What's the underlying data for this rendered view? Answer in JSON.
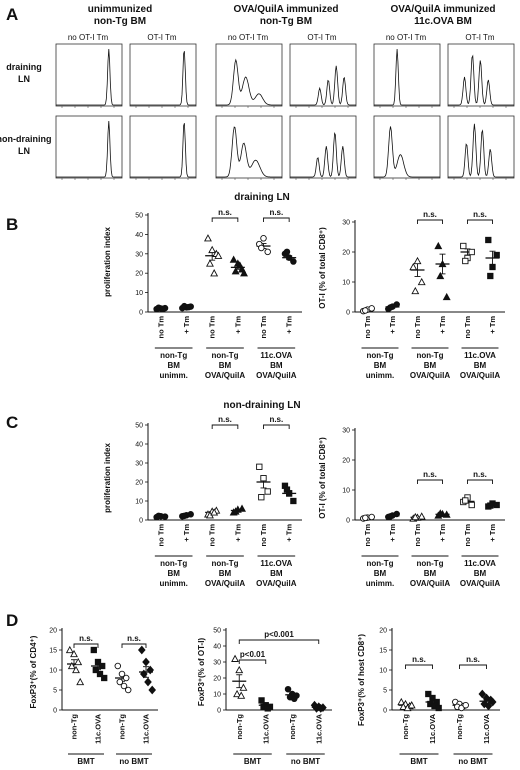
{
  "panel_a": {
    "letter": "A",
    "groups": [
      {
        "title_lines": [
          "unimmunized",
          "non-Tg BM"
        ],
        "col_labels": [
          "no OT-I Tm",
          "OT-I Tm"
        ]
      },
      {
        "title_lines": [
          "OVA/QuilA immunized",
          "non-Tg BM"
        ],
        "col_labels": [
          "no OT-I Tm",
          "OT-I Tm"
        ]
      },
      {
        "title_lines": [
          "OVA/QuilA immunized",
          "11c.OVA BM"
        ],
        "col_labels": [
          "no OT-I Tm",
          "OT-I Tm"
        ]
      }
    ],
    "row_labels": [
      [
        "draining",
        "LN"
      ],
      [
        "non-draining",
        "LN"
      ]
    ]
  },
  "panel_b": {
    "letter": "B",
    "heading": "draining LN",
    "left_ylabel": "proliferation index",
    "right_ylabel": "OT-I (% of total CD8⁺)",
    "x_cats": [
      "no Tm",
      "+ Tm",
      "no Tm",
      "+ Tm",
      "no Tm",
      "+ Tm"
    ],
    "group_labels": [
      [
        "non-Tg",
        "BM",
        "unimm."
      ],
      [
        "non-Tg",
        "BM",
        "OVA/QuilA"
      ],
      [
        "11c.OVA",
        "BM",
        "OVA/QuilA"
      ]
    ],
    "sig": [
      "n.s.",
      "n.s."
    ]
  },
  "panel_c": {
    "letter": "C",
    "heading": "non-draining LN",
    "left_ylabel": "proliferation index",
    "right_ylabel": "OT-I (% of total CD8⁺)",
    "x_cats": [
      "no Tm",
      "+ Tm",
      "no Tm",
      "+ Tm",
      "no Tm",
      "+ Tm"
    ],
    "group_labels": [
      [
        "non-Tg",
        "BM",
        "unimm."
      ],
      [
        "non-Tg",
        "BM",
        "OVA/QuilA"
      ],
      [
        "11c.OVA",
        "BM",
        "OVA/QuilA"
      ]
    ],
    "sig": [
      "n.s.",
      "n.s."
    ]
  },
  "panel_d": {
    "letter": "D",
    "x_cats": [
      "non-Tg",
      "11c.OVA",
      "non-Tg",
      "11c.OVA"
    ],
    "group_labels": [
      "BMT",
      "no BMT"
    ],
    "left_ylabel": "FoxP3⁺(% of CD4⁺)",
    "mid_ylabel": "FoxP3⁺(% of OT-I)",
    "right_ylabel": "FoxP3⁺(% of host CD8⁺)",
    "sig_left": [
      "n.s.",
      "n.s."
    ],
    "sig_mid": [
      "p<0.01",
      "p<0.001"
    ],
    "sig_right": [
      "n.s.",
      "n.s."
    ]
  },
  "chart_data": [
    {
      "id": "B-left",
      "type": "scatter",
      "ylim": [
        0,
        50
      ],
      "yticks": [
        0,
        10,
        20,
        30,
        40,
        50
      ],
      "markers": [
        "circle-filled",
        "circle-filled",
        "triangle-open",
        "triangle-filled",
        "circle-open",
        "circle-filled"
      ],
      "groups": [
        [
          1.5,
          1.8,
          2.0,
          2.2,
          1.6
        ],
        [
          2.0,
          2.4,
          2.8,
          3.0,
          2.5
        ],
        [
          38,
          32,
          30,
          25,
          20,
          29
        ],
        [
          27,
          25,
          22,
          21,
          24,
          20
        ],
        [
          35,
          38,
          31,
          33
        ],
        [
          30,
          28,
          26,
          31
        ]
      ],
      "means": [
        1.8,
        2.5,
        29,
        23,
        34,
        28
      ]
    },
    {
      "id": "B-right",
      "type": "scatter",
      "ylim": [
        0,
        30
      ],
      "yticks": [
        0,
        10,
        20,
        30
      ],
      "markers": [
        "circle-open",
        "circle-filled",
        "triangle-open",
        "triangle-filled",
        "square-open",
        "square-filled"
      ],
      "groups": [
        [
          0.3,
          0.8,
          1.2,
          0.5
        ],
        [
          1.0,
          1.8,
          2.5,
          1.5
        ],
        [
          15,
          17,
          10,
          7
        ],
        [
          22,
          16,
          5,
          12
        ],
        [
          22,
          18,
          20,
          17
        ],
        [
          24,
          15,
          19,
          12
        ]
      ],
      "means": [
        0.7,
        1.7,
        14,
        16,
        20,
        18
      ]
    },
    {
      "id": "C-left",
      "type": "scatter",
      "ylim": [
        0,
        50
      ],
      "yticks": [
        0,
        10,
        20,
        30,
        40,
        50
      ],
      "markers": [
        "circle-filled",
        "circle-filled",
        "triangle-open",
        "triangle-filled",
        "square-open",
        "square-filled"
      ],
      "groups": [
        [
          1.5,
          2.0,
          1.8,
          2.2
        ],
        [
          2.0,
          2.5,
          3.0,
          2.2
        ],
        [
          3.0,
          4.5,
          5.0,
          2.5,
          4.0
        ],
        [
          4.0,
          5.5,
          6.0,
          4.5
        ],
        [
          28,
          22,
          15,
          12
        ],
        [
          18,
          14,
          10,
          16
        ]
      ],
      "means": [
        1.9,
        2.4,
        4,
        5,
        20,
        14
      ]
    },
    {
      "id": "C-right",
      "type": "scatter",
      "ylim": [
        0,
        30
      ],
      "yticks": [
        0,
        10,
        20,
        30
      ],
      "markers": [
        "circle-open",
        "circle-filled",
        "triangle-open",
        "triangle-filled",
        "square-open",
        "square-filled"
      ],
      "groups": [
        [
          0.5,
          0.8,
          1.0,
          0.7
        ],
        [
          1.0,
          1.5,
          2.0,
          1.2
        ],
        [
          0.5,
          0.8,
          1.2,
          1.0
        ],
        [
          1.5,
          2.0,
          1.8,
          2.2
        ],
        [
          6.0,
          7.5,
          5.0,
          6.5
        ],
        [
          4.5,
          5.5,
          5.0,
          4.8
        ]
      ],
      "means": [
        0.75,
        1.4,
        0.9,
        1.9,
        6.2,
        5.0
      ]
    },
    {
      "id": "D-left",
      "type": "scatter",
      "ylim": [
        0,
        20
      ],
      "yticks": [
        0,
        5,
        10,
        15,
        20
      ],
      "markers": [
        "triangle-open",
        "square-filled",
        "circle-open",
        "diamond-filled"
      ],
      "groups": [
        [
          15,
          14,
          12,
          11,
          10,
          7
        ],
        [
          15,
          12,
          11,
          10,
          9,
          8
        ],
        [
          11,
          9,
          8,
          7,
          6,
          5
        ],
        [
          15,
          12,
          10,
          9,
          7,
          5
        ]
      ],
      "means": [
        11.5,
        11.0,
        8.0,
        9.5
      ]
    },
    {
      "id": "D-mid",
      "type": "scatter",
      "ylim": [
        0,
        50
      ],
      "yticks": [
        0,
        10,
        20,
        30,
        40,
        50
      ],
      "markers": [
        "triangle-open",
        "square-filled",
        "circle-filled",
        "diamond-filled"
      ],
      "groups": [
        [
          32,
          25,
          14,
          10,
          9
        ],
        [
          6,
          3,
          2,
          2,
          1
        ],
        [
          13,
          10,
          9,
          8,
          7
        ],
        [
          3,
          2,
          1.5,
          1,
          1
        ]
      ],
      "means": [
        18,
        3,
        9.5,
        1.7
      ]
    },
    {
      "id": "D-right",
      "type": "scatter",
      "ylim": [
        0,
        20
      ],
      "yticks": [
        0,
        5,
        10,
        15,
        20
      ],
      "markers": [
        "triangle-open",
        "square-filled",
        "circle-open",
        "diamond-filled"
      ],
      "groups": [
        [
          2.0,
          1.5,
          1.0,
          0.8,
          0.5,
          1.2
        ],
        [
          4.0,
          3.0,
          2.0,
          1.5,
          1.0,
          0.5
        ],
        [
          2.0,
          1.5,
          1.0,
          0.8,
          0.5,
          1.2
        ],
        [
          4.0,
          3.0,
          2.5,
          1.5,
          1.0,
          2.0
        ]
      ],
      "means": [
        1.2,
        2.0,
        1.2,
        2.2
      ]
    }
  ]
}
